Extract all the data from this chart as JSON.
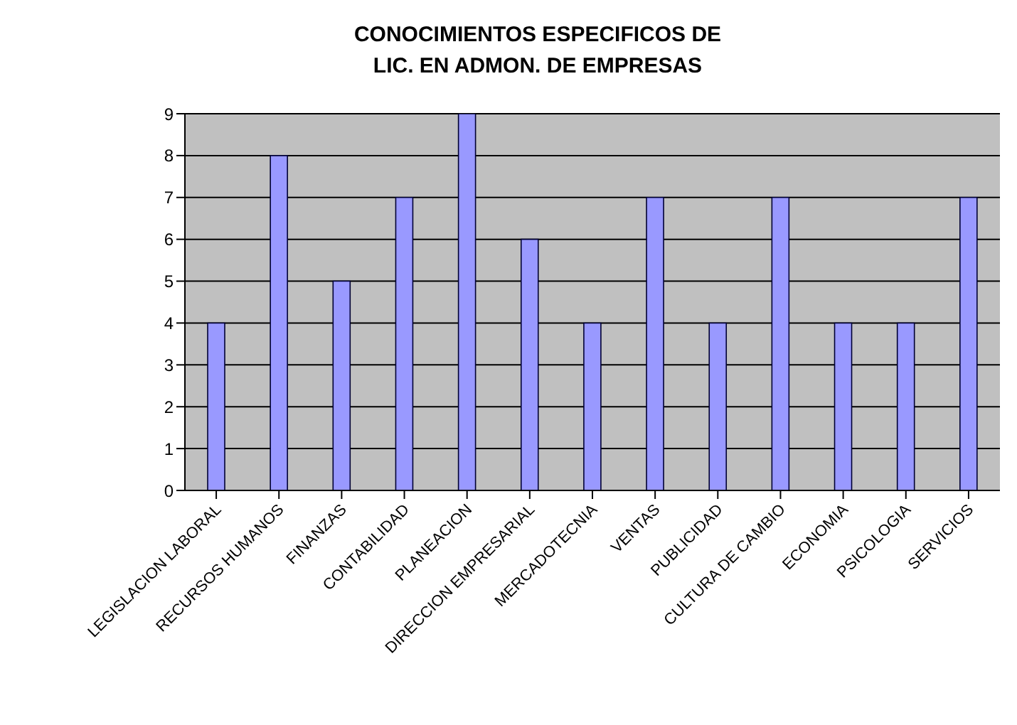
{
  "chart_data": {
    "type": "bar",
    "title": "CONOCIMIENTOS ESPECIFICOS  DE\nLIC. EN ADMON. DE EMPRESAS",
    "categories": [
      "LEGISLACION LABORAL",
      "RECURSOS HUMANOS",
      "FINANZAS",
      "CONTABILIDAD",
      "PLANEACION",
      "DIRECCION EMPRESARIAL",
      "MERCADOTECNIA",
      "VENTAS",
      "PUBLICIDAD",
      "CULTURA DE CAMBIO",
      "ECONOMIA",
      "PSICOLOGIA",
      "SERVICIOS"
    ],
    "values": [
      4,
      8,
      5,
      7,
      9,
      6,
      4,
      7,
      4,
      7,
      4,
      4,
      7
    ],
    "color": "#9999ff",
    "ylim": [
      0,
      9
    ],
    "yticks": [
      0,
      1,
      2,
      3,
      4,
      5,
      6,
      7,
      8,
      9
    ],
    "grid": "y"
  }
}
